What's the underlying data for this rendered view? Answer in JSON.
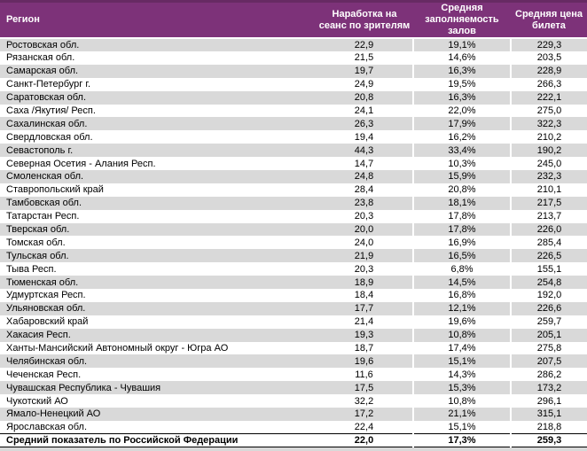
{
  "chart_data": {
    "type": "table",
    "columns": [
      "Регион",
      "Наработка на сеанс по зрителям",
      "Средняя заполняемость залов",
      "Средняя цена билета"
    ],
    "rows": [
      [
        "Ростовская обл.",
        "22,9",
        "19,1%",
        "229,3"
      ],
      [
        "Рязанская обл.",
        "21,5",
        "14,6%",
        "203,5"
      ],
      [
        "Самарская обл.",
        "19,7",
        "16,3%",
        "228,9"
      ],
      [
        "Санкт-Петербург г.",
        "24,9",
        "19,5%",
        "266,3"
      ],
      [
        "Саратовская обл.",
        "20,8",
        "16,3%",
        "222,1"
      ],
      [
        "Саха /Якутия/ Респ.",
        "24,1",
        "22,0%",
        "275,0"
      ],
      [
        "Сахалинская обл.",
        "26,3",
        "17,9%",
        "322,3"
      ],
      [
        "Свердловская обл.",
        "19,4",
        "16,2%",
        "210,2"
      ],
      [
        "Севастополь г.",
        "44,3",
        "33,4%",
        "190,2"
      ],
      [
        "Северная Осетия - Алания Респ.",
        "14,7",
        "10,3%",
        "245,0"
      ],
      [
        "Смоленская обл.",
        "24,8",
        "15,9%",
        "232,3"
      ],
      [
        "Ставропольский край",
        "28,4",
        "20,8%",
        "210,1"
      ],
      [
        "Тамбовская обл.",
        "23,8",
        "18,1%",
        "217,5"
      ],
      [
        "Татарстан Респ.",
        "20,3",
        "17,8%",
        "213,7"
      ],
      [
        "Тверская обл.",
        "20,0",
        "17,8%",
        "226,0"
      ],
      [
        "Томская обл.",
        "24,0",
        "16,9%",
        "285,4"
      ],
      [
        "Тульская обл.",
        "21,9",
        "16,5%",
        "226,5"
      ],
      [
        "Тыва Респ.",
        "20,3",
        "6,8%",
        "155,1"
      ],
      [
        "Тюменская обл.",
        "18,9",
        "14,5%",
        "254,8"
      ],
      [
        "Удмуртская Респ.",
        "18,4",
        "16,8%",
        "192,0"
      ],
      [
        "Ульяновская обл.",
        "17,7",
        "12,1%",
        "226,6"
      ],
      [
        "Хабаровский край",
        "21,4",
        "19,6%",
        "259,7"
      ],
      [
        "Хакасия Респ.",
        "19,3",
        "10,8%",
        "205,1"
      ],
      [
        "Ханты-Мансийский Автономный округ - Югра АО",
        "18,7",
        "17,4%",
        "275,8"
      ],
      [
        "Челябинская обл.",
        "19,6",
        "15,1%",
        "207,5"
      ],
      [
        "Чеченская Респ.",
        "11,6",
        "14,3%",
        "286,2"
      ],
      [
        "Чувашская Республика - Чувашия",
        "17,5",
        "15,3%",
        "173,2"
      ],
      [
        "Чукотский АО",
        "32,2",
        "10,8%",
        "296,1"
      ],
      [
        "Ямало-Ненецкий АО",
        "17,2",
        "21,1%",
        "315,1"
      ],
      [
        "Ярославская обл.",
        "22,4",
        "15,1%",
        "218,8"
      ]
    ],
    "summary_row": [
      "Средний показатель по Российской Федерации",
      "22,0",
      "17,3%",
      "259,3"
    ],
    "layout": {
      "grid": "off",
      "striped": true
    }
  },
  "colors": {
    "header_bg": "#7d3279",
    "header_top_border": "#672a63",
    "header_text": "#ffffff",
    "row_alt_bg": "#d9d9d9",
    "row_bg": "#ffffff",
    "body_text": "#000000",
    "summary_border": "#000000"
  }
}
